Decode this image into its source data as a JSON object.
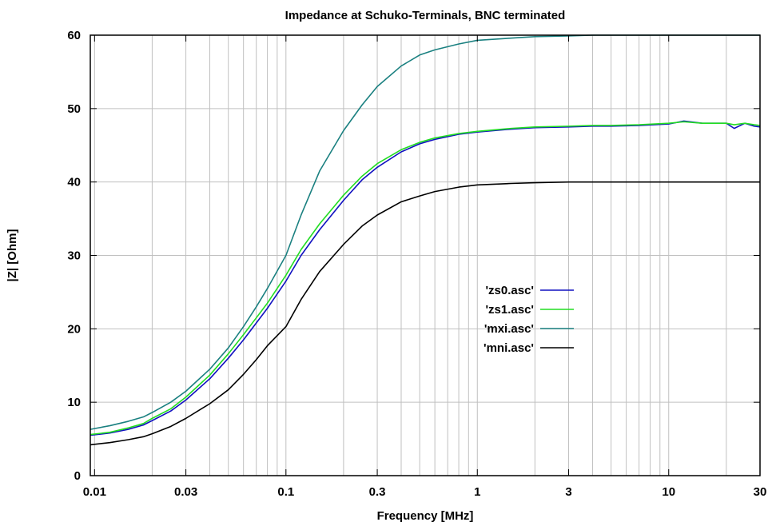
{
  "chart_data": {
    "type": "line",
    "title": "Impedance at Schuko-Terminals, BNC terminated",
    "xlabel": "Frequency [MHz]",
    "ylabel": "|Z| [Ohm]",
    "xscale": "log",
    "xlim": [
      0.0095,
      30
    ],
    "ylim": [
      0,
      60
    ],
    "xticks": [
      0.01,
      0.03,
      0.1,
      0.3,
      1,
      3,
      10,
      30
    ],
    "xtick_labels": [
      "0.01",
      "0.03",
      "0.1",
      "0.3",
      "1",
      "3",
      "10",
      "30"
    ],
    "yticks": [
      0,
      10,
      20,
      30,
      40,
      50,
      60
    ],
    "ytick_labels": [
      "0",
      "10",
      "20",
      "30",
      "40",
      "50",
      "60"
    ],
    "grid": true,
    "legend_position": "center-right",
    "series": [
      {
        "name": "'zs0.asc'",
        "color": "#1010c0",
        "x": [
          0.0095,
          0.012,
          0.015,
          0.018,
          0.02,
          0.025,
          0.03,
          0.04,
          0.05,
          0.06,
          0.07,
          0.08,
          0.1,
          0.12,
          0.15,
          0.2,
          0.25,
          0.3,
          0.4,
          0.5,
          0.6,
          0.8,
          1,
          1.5,
          2,
          3,
          4,
          5,
          7,
          10,
          12,
          15,
          20,
          22,
          25,
          28,
          30
        ],
        "y": [
          5.5,
          5.8,
          6.3,
          6.9,
          7.5,
          8.8,
          10.3,
          13.2,
          16,
          18.5,
          20.8,
          22.8,
          26.5,
          30,
          33.5,
          37.5,
          40.3,
          42,
          44.1,
          45.2,
          45.8,
          46.5,
          46.8,
          47.2,
          47.4,
          47.5,
          47.6,
          47.6,
          47.7,
          47.9,
          48.3,
          48,
          48,
          47.3,
          48,
          47.6,
          47.5
        ]
      },
      {
        "name": "'zs1.asc'",
        "color": "#22dd22",
        "x": [
          0.0095,
          0.012,
          0.015,
          0.018,
          0.02,
          0.025,
          0.03,
          0.04,
          0.05,
          0.06,
          0.07,
          0.08,
          0.1,
          0.12,
          0.15,
          0.2,
          0.25,
          0.3,
          0.4,
          0.5,
          0.6,
          0.8,
          1,
          1.5,
          2,
          3,
          4,
          5,
          7,
          10,
          12,
          15,
          20,
          22,
          25,
          28,
          30
        ],
        "y": [
          5.6,
          5.9,
          6.5,
          7.1,
          7.8,
          9.1,
          10.7,
          13.7,
          16.6,
          19.2,
          21.5,
          23.5,
          27.3,
          30.8,
          34.3,
          38.2,
          40.8,
          42.5,
          44.4,
          45.4,
          46,
          46.6,
          46.9,
          47.3,
          47.5,
          47.6,
          47.7,
          47.7,
          47.8,
          48,
          48.2,
          48,
          48,
          47.8,
          48,
          47.8,
          47.7
        ]
      },
      {
        "name": "'mxi.asc'",
        "color": "#1a8080",
        "x": [
          0.0095,
          0.012,
          0.015,
          0.018,
          0.02,
          0.025,
          0.03,
          0.04,
          0.05,
          0.06,
          0.07,
          0.08,
          0.1,
          0.12,
          0.15,
          0.2,
          0.25,
          0.3,
          0.4,
          0.5,
          0.6,
          0.8,
          1,
          1.5,
          2,
          3,
          4,
          5,
          10,
          20,
          30
        ],
        "y": [
          6.3,
          6.8,
          7.4,
          8,
          8.6,
          10,
          11.5,
          14.5,
          17.4,
          20.3,
          23,
          25.5,
          30,
          35.5,
          41.5,
          47,
          50.5,
          53,
          55.8,
          57.3,
          58,
          58.8,
          59.3,
          59.6,
          59.8,
          59.9,
          60,
          60,
          60,
          60,
          60
        ]
      },
      {
        "name": "'mni.asc'",
        "color": "#000000",
        "x": [
          0.0095,
          0.012,
          0.015,
          0.018,
          0.02,
          0.025,
          0.03,
          0.04,
          0.05,
          0.06,
          0.07,
          0.08,
          0.1,
          0.12,
          0.15,
          0.2,
          0.25,
          0.3,
          0.4,
          0.5,
          0.6,
          0.8,
          1,
          1.5,
          2,
          3,
          4,
          5,
          10,
          20,
          30
        ],
        "y": [
          4.2,
          4.5,
          4.9,
          5.3,
          5.7,
          6.7,
          7.8,
          9.8,
          11.7,
          13.8,
          15.8,
          17.7,
          20.3,
          24,
          27.8,
          31.5,
          34,
          35.5,
          37.3,
          38.1,
          38.7,
          39.3,
          39.6,
          39.8,
          39.9,
          40,
          40,
          40,
          40,
          40,
          40
        ]
      }
    ]
  }
}
